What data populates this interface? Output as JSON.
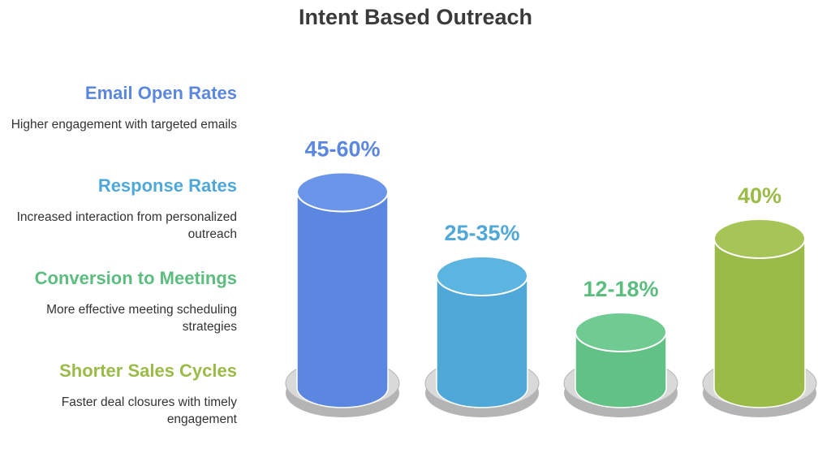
{
  "title": "Intent Based Outreach",
  "chart_data": {
    "type": "bar",
    "title": "Intent Based Outreach",
    "categories": [
      "Email Open Rates",
      "Response Rates",
      "Conversion to Meetings",
      "Shorter Sales Cycles"
    ],
    "descriptions": [
      "Higher engagement with targeted emails",
      "Increased interaction from personalized outreach",
      "More effective meeting scheduling strategies",
      "Faster deal closures with timely engagement"
    ],
    "value_labels": [
      "45-60%",
      "25-35%",
      "12-18%",
      "40%"
    ],
    "values": [
      52.5,
      30,
      15,
      40
    ],
    "colors": [
      "#5b87e0",
      "#4fa8d8",
      "#62c185",
      "#9bbb48"
    ],
    "cap_colors": [
      "#6b95e8",
      "#5cb4e0",
      "#70cb92",
      "#a6c556"
    ],
    "label_colors": [
      "#5b87e0",
      "#4fa8d8",
      "#5cbd7e",
      "#9bbb48"
    ],
    "pedestal_colors": [
      "#b4b4b4",
      "#d9d9d9"
    ]
  }
}
